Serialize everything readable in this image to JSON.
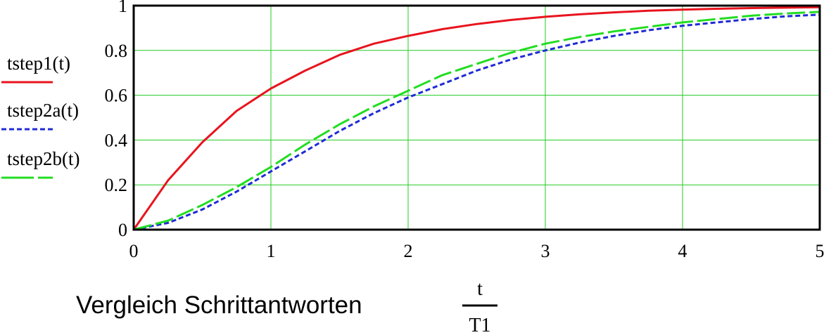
{
  "chart_data": {
    "type": "line",
    "title": "Vergleich Schrittantworten",
    "xlabel": {
      "numerator": "t",
      "denominator": "T1"
    },
    "ylabel": "",
    "xlim": [
      0,
      5
    ],
    "ylim": [
      0,
      1
    ],
    "x_ticks": [
      "0",
      "1",
      "2",
      "3",
      "4",
      "5"
    ],
    "y_ticks": [
      "0",
      "0.2",
      "0.4",
      "0.6",
      "0.8",
      "1"
    ],
    "grid": true,
    "legend_position": "left",
    "series": [
      {
        "name": "tstep1(t)",
        "color": "#e8141e",
        "style": "solid",
        "x": [
          0,
          0.25,
          0.5,
          0.75,
          1.0,
          1.25,
          1.5,
          1.75,
          2.0,
          2.25,
          2.5,
          2.75,
          3.0,
          3.25,
          3.5,
          3.75,
          4.0,
          4.25,
          4.5,
          4.75,
          5.0
        ],
        "y": [
          0,
          0.22,
          0.39,
          0.53,
          0.63,
          0.71,
          0.78,
          0.83,
          0.865,
          0.895,
          0.918,
          0.936,
          0.95,
          0.961,
          0.97,
          0.977,
          0.982,
          0.986,
          0.989,
          0.991,
          0.993
        ]
      },
      {
        "name": "tstep2a(t)",
        "color": "#1f2bd6",
        "style": "dotted",
        "x": [
          0,
          0.25,
          0.5,
          0.75,
          1.0,
          1.25,
          1.5,
          1.75,
          2.0,
          2.25,
          2.5,
          2.75,
          3.0,
          3.25,
          3.5,
          3.75,
          4.0,
          4.25,
          4.5,
          4.75,
          5.0
        ],
        "y": [
          0,
          0.03,
          0.09,
          0.17,
          0.26,
          0.35,
          0.44,
          0.52,
          0.59,
          0.65,
          0.71,
          0.76,
          0.8,
          0.835,
          0.865,
          0.89,
          0.91,
          0.925,
          0.94,
          0.952,
          0.96
        ]
      },
      {
        "name": "tstep2b(t)",
        "color": "#22dd22",
        "style": "dashed",
        "x": [
          0,
          0.25,
          0.5,
          0.75,
          1.0,
          1.25,
          1.5,
          1.75,
          2.0,
          2.25,
          2.5,
          2.75,
          3.0,
          3.25,
          3.5,
          3.75,
          4.0,
          4.25,
          4.5,
          4.75,
          5.0
        ],
        "y": [
          0,
          0.04,
          0.11,
          0.19,
          0.28,
          0.38,
          0.47,
          0.55,
          0.62,
          0.69,
          0.74,
          0.79,
          0.83,
          0.86,
          0.885,
          0.905,
          0.925,
          0.94,
          0.955,
          0.965,
          0.972
        ]
      }
    ]
  }
}
